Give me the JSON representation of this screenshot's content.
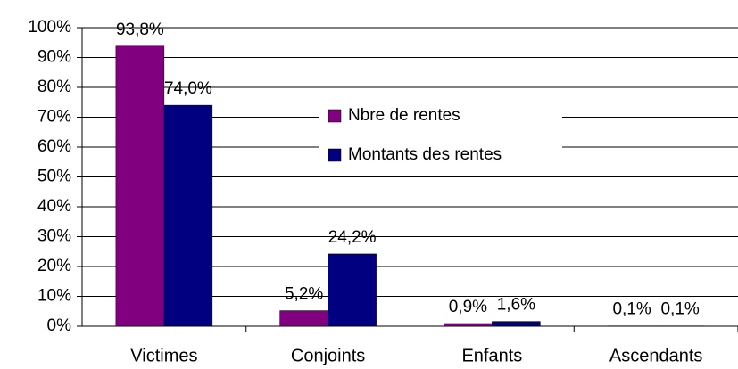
{
  "chart_data": {
    "type": "bar",
    "categories": [
      "Victimes",
      "Conjoints",
      "Enfants",
      "Ascendants"
    ],
    "series": [
      {
        "name": "Nbre de rentes",
        "color": "#800080",
        "values": [
          93.8,
          5.2,
          0.9,
          0.1
        ],
        "value_labels": [
          "93,8%",
          "5,2%",
          "0,9%",
          "0,1%"
        ]
      },
      {
        "name": "Montants des rentes",
        "color": "#000080",
        "values": [
          74.0,
          24.2,
          1.6,
          0.1
        ],
        "value_labels": [
          "74,0%",
          "24,2%",
          "1,6%",
          "0,1%"
        ]
      }
    ],
    "ylim": [
      0,
      100
    ],
    "yticks": [
      {
        "value": 0,
        "label": "0%"
      },
      {
        "value": 10,
        "label": "10%"
      },
      {
        "value": 20,
        "label": "20%"
      },
      {
        "value": 30,
        "label": "30%"
      },
      {
        "value": 40,
        "label": "40%"
      },
      {
        "value": 50,
        "label": "50%"
      },
      {
        "value": 60,
        "label": "60%"
      },
      {
        "value": 70,
        "label": "70%"
      },
      {
        "value": 80,
        "label": "80%"
      },
      {
        "value": 90,
        "label": "90%"
      },
      {
        "value": 100,
        "label": "100%"
      }
    ],
    "grid": true
  }
}
